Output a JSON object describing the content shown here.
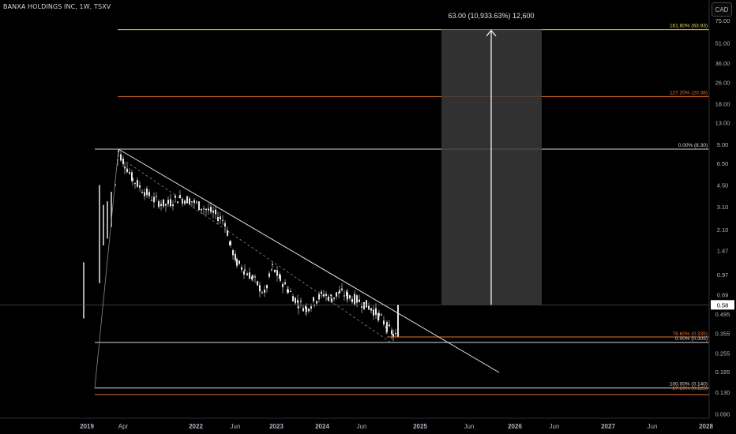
{
  "header": {
    "title": "BANXA HOLDINGS INC, 1W, TSXV",
    "currency_button": "CAD"
  },
  "measure": {
    "label": "63.00 (10,933.63%) 12,600"
  },
  "colors": {
    "background": "#000000",
    "candle": "#e6e6e6",
    "fib_yellow": "#e8d64a",
    "fib_orange": "#e8702a",
    "fib_white": "#d9d9d9",
    "trendline": "#e6e6e6",
    "measure_box": "#3a3a3a",
    "price_badge": "#ffffff"
  },
  "chart_data": {
    "type": "candlestick",
    "title": "BANXA HOLDINGS INC, 1W, TSXV",
    "scale": "log",
    "y_ticks": [
      "75.00",
      "51.00",
      "36.00",
      "26.00",
      "18.00",
      "13.00",
      "9.00",
      "6.50",
      "4.50",
      "3.10",
      "2.10",
      "1.47",
      "0.97",
      "0.69",
      "0.495",
      "0.355",
      "0.255",
      "0.185",
      "0.130",
      "0.090"
    ],
    "x_ticks": [
      "2019",
      "Apr",
      "2022",
      "Jun",
      "2023",
      "2024",
      "Jun",
      "2025",
      "Jun",
      "2026",
      "Jun",
      "2027",
      "Jun",
      "2028"
    ],
    "current_price": "0.58",
    "fib_levels": [
      {
        "label": "161.80% (63.93)",
        "value": 63.93,
        "color": "#e8d64a"
      },
      {
        "label": "127.20% (20.38)",
        "value": 20.38,
        "color": "#e8702a"
      },
      {
        "label": "0.00% (8.30)",
        "value": 8.3,
        "color": "#d9d9d9"
      },
      {
        "label": "78.60% (0.335)",
        "value": 0.335,
        "color": "#e8702a"
      },
      {
        "label": "0.00% (0.305)",
        "value": 0.305,
        "color": "#d9d9d9"
      },
      {
        "label": "100.00% (0.140)",
        "value": 0.14,
        "color": "#d9d9d9"
      },
      {
        "label": "27.20% (0.125)",
        "value": 0.125,
        "color": "#e8702a"
      }
    ],
    "trend": {
      "high": 8.3,
      "low": 0.305
    }
  }
}
